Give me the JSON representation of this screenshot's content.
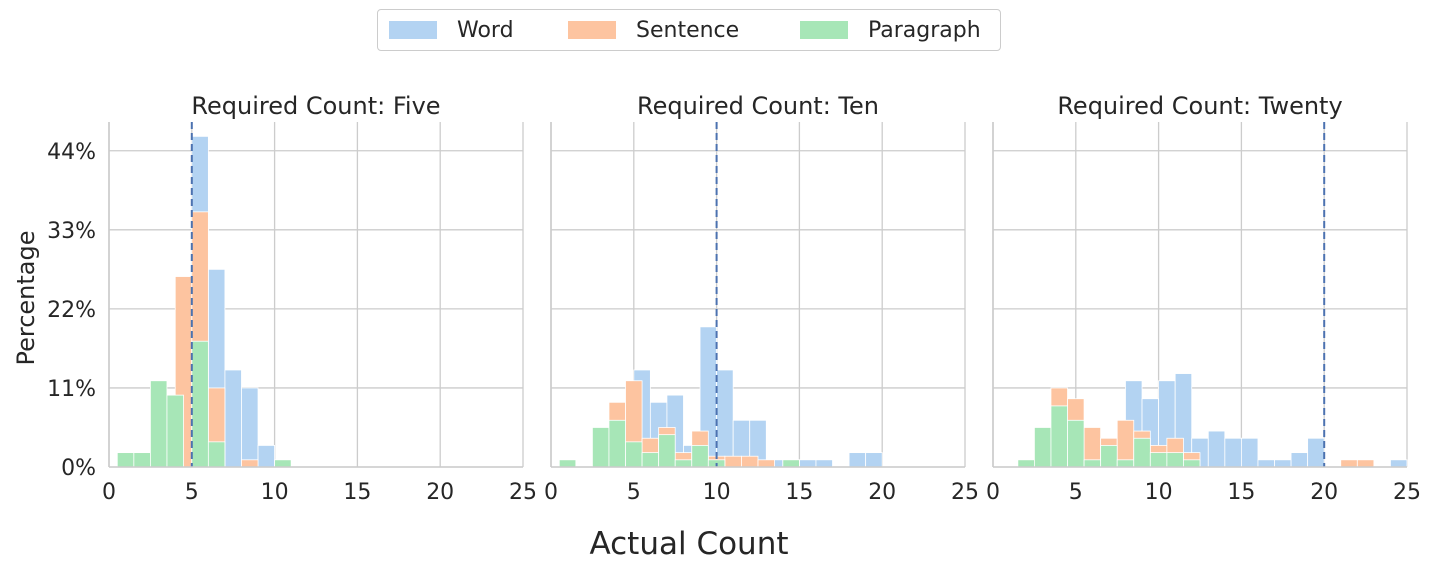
{
  "figure": {
    "xlabel": "Actual Count",
    "ylabel": "Percentage"
  },
  "legend": {
    "placement": "top-center",
    "items": [
      {
        "label": "Word",
        "color": "#b3d3f2"
      },
      {
        "label": "Sentence",
        "color": "#fdc4a0"
      },
      {
        "label": "Paragraph",
        "color": "#a7e6b7"
      }
    ]
  },
  "colors": {
    "reference_line": "#4c72b0",
    "grid": "#cccccc",
    "axis": "#cccccc"
  },
  "chart_data": [
    {
      "type": "bar",
      "title": "Required Count: Five",
      "reference_x": 5,
      "xlim": [
        0,
        25
      ],
      "ylim": [
        0,
        48
      ],
      "xticks": [
        0,
        5,
        10,
        15,
        20,
        25
      ],
      "ytick_values": [
        0,
        11,
        22,
        33,
        44
      ],
      "ytick_labels": [
        "0%",
        "11%",
        "22%",
        "33%",
        "44%"
      ],
      "grid": true,
      "series": [
        {
          "name": "Word",
          "bins": [
            [
              5,
              6,
              46
            ],
            [
              6,
              7,
              27.5
            ],
            [
              7,
              8,
              13.5
            ],
            [
              8,
              9,
              11
            ],
            [
              9,
              10,
              3
            ]
          ]
        },
        {
          "name": "Sentence",
          "bins": [
            [
              4,
              5,
              26.5
            ],
            [
              5,
              6,
              35.5
            ],
            [
              6,
              7,
              11
            ],
            [
              8,
              9,
              1
            ]
          ]
        },
        {
          "name": "Paragraph",
          "bins": [
            [
              0.5,
              1.5,
              2
            ],
            [
              1.5,
              2.5,
              2
            ],
            [
              2.5,
              3.5,
              12
            ],
            [
              3.5,
              4.5,
              10
            ],
            [
              5,
              6,
              17.5
            ],
            [
              6,
              7,
              3.5
            ],
            [
              10,
              11,
              1
            ]
          ]
        }
      ]
    },
    {
      "type": "bar",
      "title": "Required Count: Ten",
      "reference_x": 10,
      "xlim": [
        0,
        25
      ],
      "ylim": [
        0,
        48
      ],
      "xticks": [
        0,
        5,
        10,
        15,
        20,
        25
      ],
      "ytick_values": [
        0,
        11,
        22,
        33,
        44
      ],
      "ytick_labels": [
        "0%",
        "11%",
        "22%",
        "33%",
        "44%"
      ],
      "grid": true,
      "series": [
        {
          "name": "Word",
          "bins": [
            [
              5,
              6,
              13.5
            ],
            [
              6,
              7,
              9
            ],
            [
              7,
              8,
              10
            ],
            [
              8,
              9,
              3
            ],
            [
              9,
              10,
              19.5
            ],
            [
              10,
              11,
              13.5
            ],
            [
              11,
              12,
              6.5
            ],
            [
              12,
              13,
              6.5
            ],
            [
              13,
              14,
              1
            ],
            [
              14,
              15,
              1
            ],
            [
              15,
              16,
              1
            ],
            [
              16,
              17,
              1
            ],
            [
              18,
              19,
              2
            ],
            [
              19,
              20,
              2
            ]
          ]
        },
        {
          "name": "Sentence",
          "bins": [
            [
              3.5,
              4.5,
              9
            ],
            [
              4.5,
              5.5,
              12
            ],
            [
              5.5,
              6.5,
              4
            ],
            [
              6.5,
              7.5,
              5.5
            ],
            [
              7.5,
              8.5,
              2
            ],
            [
              8.5,
              9.5,
              5
            ],
            [
              9.5,
              10.5,
              1.5
            ],
            [
              10.5,
              11.5,
              1.5
            ],
            [
              11.5,
              12.5,
              1.5
            ],
            [
              12.5,
              13.5,
              1
            ],
            [
              14,
              15,
              1
            ]
          ]
        },
        {
          "name": "Paragraph",
          "bins": [
            [
              0.5,
              1.5,
              1
            ],
            [
              2.5,
              3.5,
              5.5
            ],
            [
              3.5,
              4.5,
              6.5
            ],
            [
              4.5,
              5.5,
              3.5
            ],
            [
              5.5,
              6.5,
              2
            ],
            [
              6.5,
              7.5,
              4.5
            ],
            [
              7.5,
              8.5,
              1
            ],
            [
              8.5,
              9.5,
              3
            ],
            [
              9.5,
              10.5,
              1
            ],
            [
              14,
              15,
              1
            ]
          ]
        }
      ]
    },
    {
      "type": "bar",
      "title": "Required Count: Twenty",
      "reference_x": 20,
      "xlim": [
        0,
        25
      ],
      "ylim": [
        0,
        48
      ],
      "xticks": [
        0,
        5,
        10,
        15,
        20,
        25
      ],
      "ytick_values": [
        0,
        11,
        22,
        33,
        44
      ],
      "ytick_labels": [
        "0%",
        "11%",
        "22%",
        "33%",
        "44%"
      ],
      "grid": true,
      "series": [
        {
          "name": "Word",
          "bins": [
            [
              8,
              9,
              12
            ],
            [
              9,
              10,
              9.5
            ],
            [
              10,
              11,
              12
            ],
            [
              11,
              12,
              13
            ],
            [
              12,
              13,
              4
            ],
            [
              13,
              14,
              5
            ],
            [
              14,
              15,
              4
            ],
            [
              15,
              16,
              4
            ],
            [
              16,
              17,
              1
            ],
            [
              17,
              18,
              1
            ],
            [
              18,
              19,
              2
            ],
            [
              19,
              20,
              4
            ],
            [
              21,
              22,
              1
            ],
            [
              24,
              25,
              1
            ]
          ]
        },
        {
          "name": "Sentence",
          "bins": [
            [
              3.5,
              4.5,
              11
            ],
            [
              4.5,
              5.5,
              9.5
            ],
            [
              5.5,
              6.5,
              5.5
            ],
            [
              6.5,
              7.5,
              4
            ],
            [
              7.5,
              8.5,
              6.5
            ],
            [
              8.5,
              9.5,
              5
            ],
            [
              9.5,
              10.5,
              3
            ],
            [
              10.5,
              11.5,
              4
            ],
            [
              11.5,
              12.5,
              2
            ],
            [
              21,
              22,
              1
            ],
            [
              22,
              23,
              1
            ]
          ]
        },
        {
          "name": "Paragraph",
          "bins": [
            [
              1.5,
              2.5,
              1
            ],
            [
              2.5,
              3.5,
              5.5
            ],
            [
              3.5,
              4.5,
              8.5
            ],
            [
              4.5,
              5.5,
              6.5
            ],
            [
              5.5,
              6.5,
              1
            ],
            [
              6.5,
              7.5,
              3
            ],
            [
              7.5,
              8.5,
              1
            ],
            [
              8.5,
              9.5,
              4
            ],
            [
              9.5,
              10.5,
              2
            ],
            [
              10.5,
              11.5,
              2
            ],
            [
              11.5,
              12.5,
              1
            ]
          ]
        }
      ]
    }
  ]
}
